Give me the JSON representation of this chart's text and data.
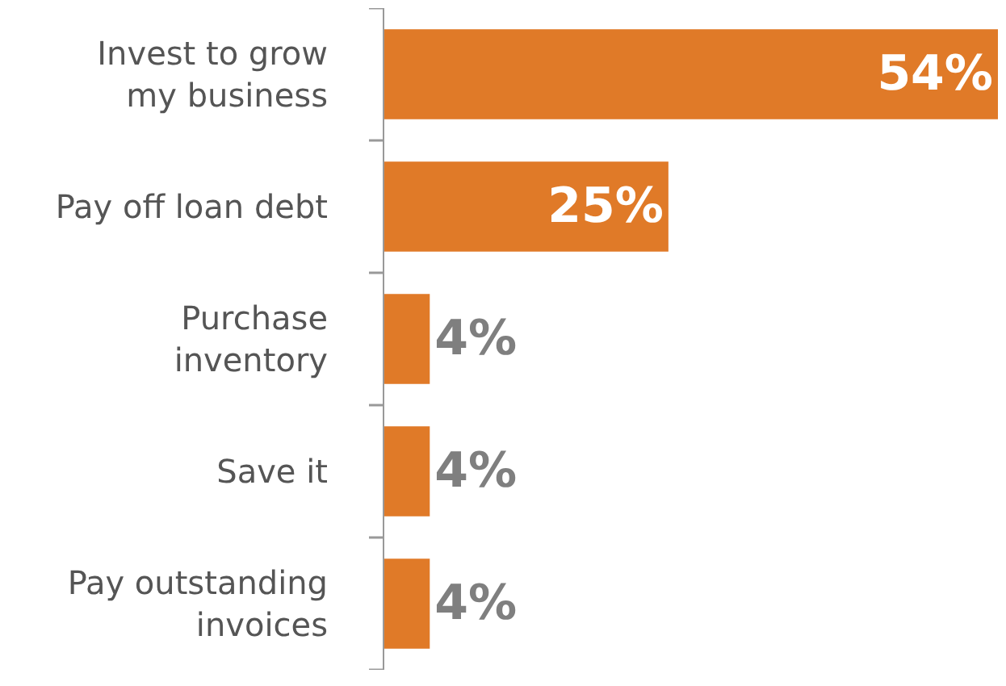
{
  "chart_data": {
    "type": "bar",
    "orientation": "horizontal",
    "categories": [
      "Invest to grow\nmy business",
      "Pay off loan debt",
      "Purchase\ninventory",
      "Save it",
      "Pay outstanding\ninvoices"
    ],
    "values": [
      54,
      25,
      4,
      4,
      4
    ],
    "color": "#e07a28",
    "value_labels": [
      "54%",
      "25%",
      "4%",
      "4%",
      "4%"
    ],
    "tick_labels": "y"
  }
}
